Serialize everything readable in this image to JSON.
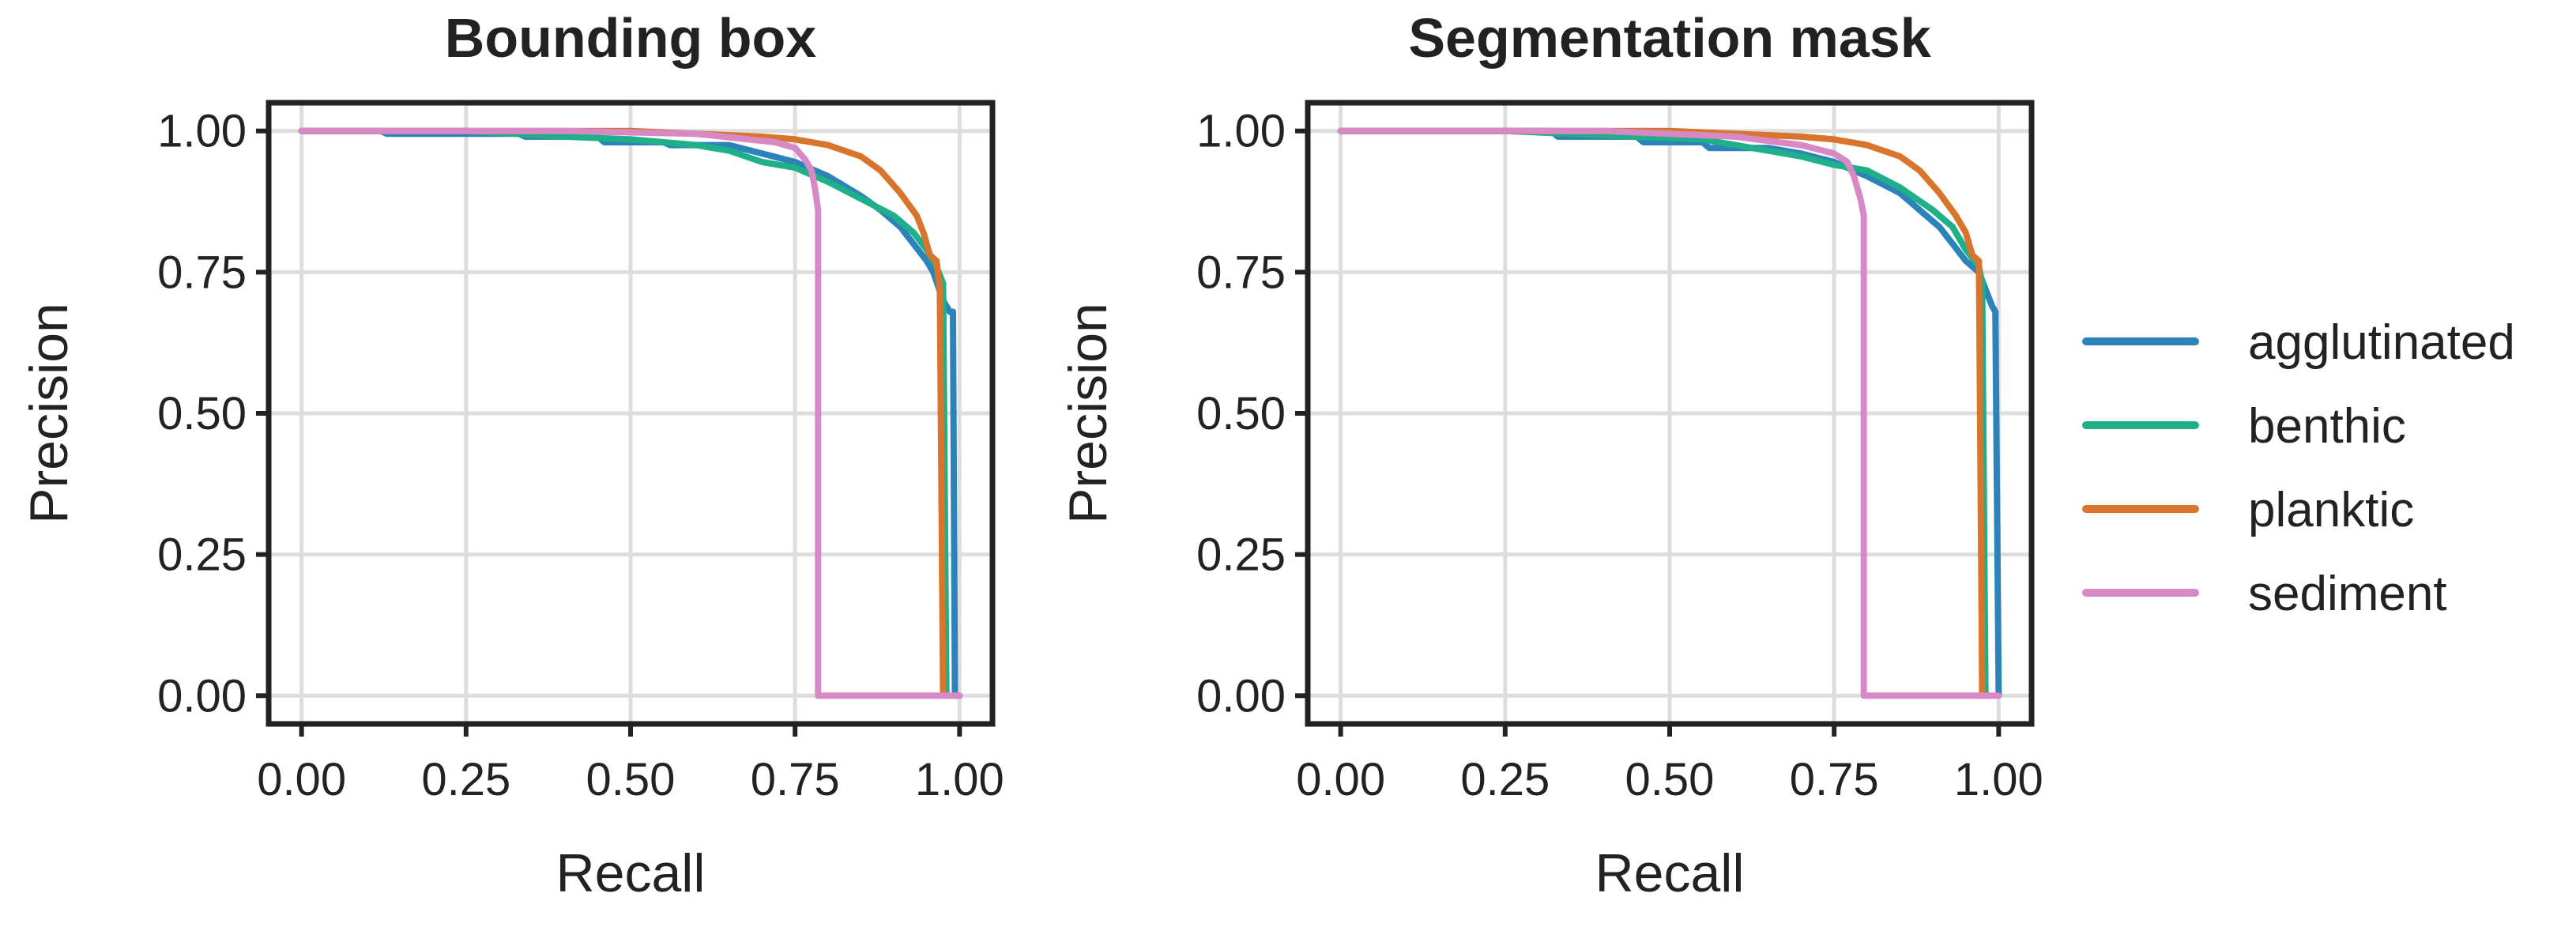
{
  "chart_data": {
    "type": "line",
    "legend": [
      {
        "name": "agglutinated",
        "color": "#2b83ba"
      },
      {
        "name": "benthic",
        "color": "#1fb08a"
      },
      {
        "name": "planktic",
        "color": "#d9742c"
      },
      {
        "name": "sediment",
        "color": "#d889c5"
      }
    ],
    "charts": [
      {
        "title": "Bounding box",
        "xlabel": "Recall",
        "ylabel": "Precision",
        "xlim": [
          -0.05,
          1.05
        ],
        "ylim": [
          -0.05,
          1.05
        ],
        "xticks": [
          "0.00",
          "0.25",
          "0.50",
          "0.75",
          "1.00"
        ],
        "yticks": [
          "0.00",
          "0.25",
          "0.50",
          "0.75",
          "1.00"
        ],
        "series": [
          {
            "name": "agglutinated",
            "points": [
              [
                0,
                1.0
              ],
              [
                0.12,
                1.0
              ],
              [
                0.13,
                0.995
              ],
              [
                0.33,
                0.995
              ],
              [
                0.34,
                0.99
              ],
              [
                0.45,
                0.99
              ],
              [
                0.46,
                0.98
              ],
              [
                0.55,
                0.98
              ],
              [
                0.56,
                0.975
              ],
              [
                0.65,
                0.975
              ],
              [
                0.7,
                0.96
              ],
              [
                0.75,
                0.945
              ],
              [
                0.8,
                0.92
              ],
              [
                0.85,
                0.885
              ],
              [
                0.88,
                0.86
              ],
              [
                0.91,
                0.83
              ],
              [
                0.93,
                0.8
              ],
              [
                0.95,
                0.77
              ],
              [
                0.96,
                0.75
              ],
              [
                0.975,
                0.7
              ],
              [
                0.985,
                0.68
              ],
              [
                0.99,
                0.68
              ],
              [
                0.993,
                0.0
              ],
              [
                1.0,
                0.0
              ]
            ]
          },
          {
            "name": "benthic",
            "points": [
              [
                0,
                1.0
              ],
              [
                0.25,
                1.0
              ],
              [
                0.4,
                0.99
              ],
              [
                0.5,
                0.985
              ],
              [
                0.6,
                0.975
              ],
              [
                0.65,
                0.965
              ],
              [
                0.7,
                0.945
              ],
              [
                0.75,
                0.935
              ],
              [
                0.8,
                0.91
              ],
              [
                0.85,
                0.88
              ],
              [
                0.9,
                0.85
              ],
              [
                0.93,
                0.82
              ],
              [
                0.95,
                0.79
              ],
              [
                0.965,
                0.76
              ],
              [
                0.975,
                0.73
              ],
              [
                0.98,
                0.0
              ]
            ]
          },
          {
            "name": "planktic",
            "points": [
              [
                0,
                1.0
              ],
              [
                0.5,
                1.0
              ],
              [
                0.6,
                0.995
              ],
              [
                0.7,
                0.99
              ],
              [
                0.75,
                0.985
              ],
              [
                0.8,
                0.975
              ],
              [
                0.85,
                0.955
              ],
              [
                0.88,
                0.93
              ],
              [
                0.91,
                0.89
              ],
              [
                0.935,
                0.85
              ],
              [
                0.945,
                0.82
              ],
              [
                0.955,
                0.78
              ],
              [
                0.965,
                0.77
              ],
              [
                0.97,
                0.72
              ],
              [
                0.975,
                0.0
              ]
            ]
          },
          {
            "name": "sediment",
            "points": [
              [
                0,
                1.0
              ],
              [
                0.4,
                1.0
              ],
              [
                0.6,
                0.995
              ],
              [
                0.68,
                0.985
              ],
              [
                0.72,
                0.98
              ],
              [
                0.75,
                0.97
              ],
              [
                0.765,
                0.95
              ],
              [
                0.775,
                0.93
              ],
              [
                0.78,
                0.9
              ],
              [
                0.785,
                0.86
              ],
              [
                0.785,
                0.0
              ],
              [
                1.0,
                0.0
              ]
            ]
          }
        ]
      },
      {
        "title": "Segmentation mask",
        "xlabel": "Recall",
        "ylabel": "Precision",
        "xlim": [
          -0.05,
          1.05
        ],
        "ylim": [
          -0.05,
          1.05
        ],
        "xticks": [
          "0.00",
          "0.25",
          "0.50",
          "0.75",
          "1.00"
        ],
        "yticks": [
          "0.00",
          "0.25",
          "0.50",
          "0.75",
          "1.00"
        ],
        "series": [
          {
            "name": "agglutinated",
            "points": [
              [
                0,
                1.0
              ],
              [
                0.32,
                1.0
              ],
              [
                0.33,
                0.99
              ],
              [
                0.45,
                0.99
              ],
              [
                0.46,
                0.98
              ],
              [
                0.55,
                0.98
              ],
              [
                0.56,
                0.97
              ],
              [
                0.65,
                0.97
              ],
              [
                0.7,
                0.96
              ],
              [
                0.75,
                0.945
              ],
              [
                0.8,
                0.92
              ],
              [
                0.85,
                0.89
              ],
              [
                0.88,
                0.86
              ],
              [
                0.91,
                0.83
              ],
              [
                0.93,
                0.8
              ],
              [
                0.95,
                0.77
              ],
              [
                0.97,
                0.75
              ],
              [
                0.98,
                0.72
              ],
              [
                0.99,
                0.69
              ],
              [
                0.995,
                0.68
              ],
              [
                1.0,
                0.0
              ]
            ]
          },
          {
            "name": "benthic",
            "points": [
              [
                0,
                1.0
              ],
              [
                0.25,
                1.0
              ],
              [
                0.45,
                0.99
              ],
              [
                0.55,
                0.985
              ],
              [
                0.6,
                0.975
              ],
              [
                0.65,
                0.965
              ],
              [
                0.7,
                0.955
              ],
              [
                0.75,
                0.94
              ],
              [
                0.8,
                0.93
              ],
              [
                0.85,
                0.9
              ],
              [
                0.9,
                0.86
              ],
              [
                0.93,
                0.83
              ],
              [
                0.95,
                0.79
              ],
              [
                0.97,
                0.76
              ],
              [
                0.975,
                0.73
              ],
              [
                0.98,
                0.0
              ]
            ]
          },
          {
            "name": "planktic",
            "points": [
              [
                0,
                1.0
              ],
              [
                0.5,
                1.0
              ],
              [
                0.6,
                0.995
              ],
              [
                0.7,
                0.99
              ],
              [
                0.75,
                0.985
              ],
              [
                0.8,
                0.975
              ],
              [
                0.85,
                0.955
              ],
              [
                0.88,
                0.93
              ],
              [
                0.91,
                0.89
              ],
              [
                0.935,
                0.85
              ],
              [
                0.95,
                0.82
              ],
              [
                0.96,
                0.78
              ],
              [
                0.97,
                0.77
              ],
              [
                0.975,
                0.0
              ]
            ]
          },
          {
            "name": "sediment",
            "points": [
              [
                0,
                1.0
              ],
              [
                0.4,
                1.0
              ],
              [
                0.6,
                0.99
              ],
              [
                0.7,
                0.975
              ],
              [
                0.75,
                0.96
              ],
              [
                0.77,
                0.945
              ],
              [
                0.78,
                0.92
              ],
              [
                0.79,
                0.88
              ],
              [
                0.795,
                0.85
              ],
              [
                0.795,
                0.0
              ],
              [
                1.0,
                0.0
              ]
            ]
          }
        ]
      }
    ]
  }
}
